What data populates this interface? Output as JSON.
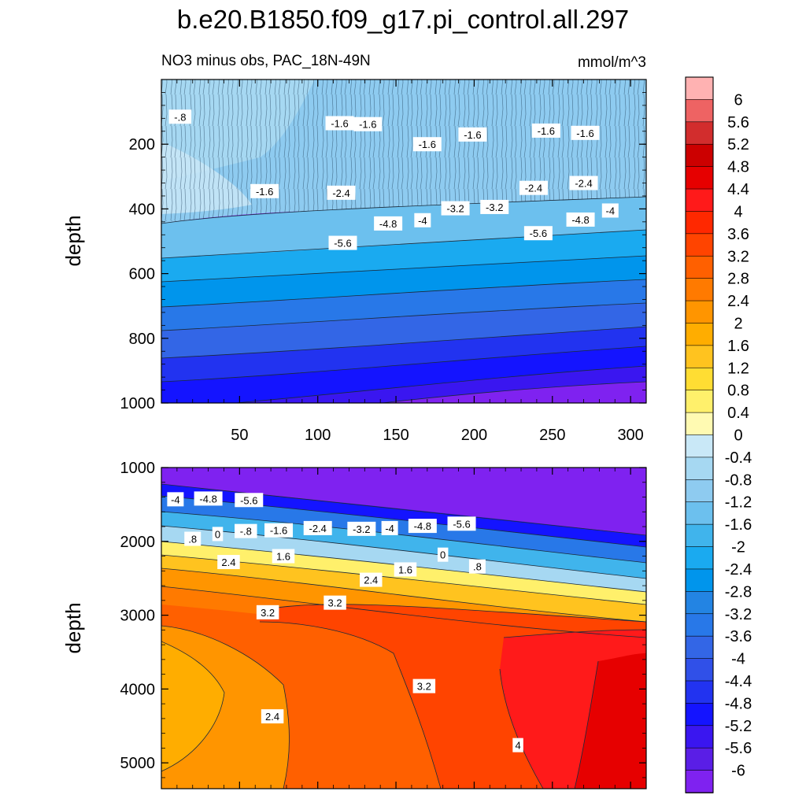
{
  "title": "b.e20.B1850.f09_g17.pi_control.all.297",
  "subtitle": "NO3 minus obs, PAC_18N-49N",
  "units": "mmol/m^3",
  "chart_data": [
    {
      "type": "contour",
      "panel": "upper",
      "ylabel": "depth",
      "xlabel": "",
      "xlim": [
        0,
        310
      ],
      "ylim": [
        1000,
        0
      ],
      "x_ticks": [
        50,
        100,
        150,
        200,
        250,
        300
      ],
      "y_ticks": [
        200,
        400,
        600,
        800,
        1000
      ],
      "contour_labels": [
        {
          "text": "-.8",
          "x": 12,
          "y": 115
        },
        {
          "text": "-1.6",
          "x": 114,
          "y": 135
        },
        {
          "text": "-1.6",
          "x": 132,
          "y": 138
        },
        {
          "text": "-1.6",
          "x": 170,
          "y": 200
        },
        {
          "text": "-1.6",
          "x": 199,
          "y": 170
        },
        {
          "text": "-1.6",
          "x": 246,
          "y": 158
        },
        {
          "text": "-1.6",
          "x": 271,
          "y": 165
        },
        {
          "text": "-1.6",
          "x": 66,
          "y": 345
        },
        {
          "text": "-2.4",
          "x": 115,
          "y": 350
        },
        {
          "text": "-2.4",
          "x": 238,
          "y": 335
        },
        {
          "text": "-2.4",
          "x": 270,
          "y": 320
        },
        {
          "text": "-3.2",
          "x": 188,
          "y": 398
        },
        {
          "text": "-3.2",
          "x": 213,
          "y": 394
        },
        {
          "text": "-4",
          "x": 167,
          "y": 435
        },
        {
          "text": "-4",
          "x": 287,
          "y": 405
        },
        {
          "text": "-4.8",
          "x": 145,
          "y": 445
        },
        {
          "text": "-4.8",
          "x": 268,
          "y": 433
        },
        {
          "text": "-5.6",
          "x": 116,
          "y": 505
        },
        {
          "text": "-5.6",
          "x": 241,
          "y": 475
        }
      ]
    },
    {
      "type": "contour",
      "panel": "lower",
      "ylabel": "depth",
      "xlabel": "",
      "xlim": [
        0,
        310
      ],
      "ylim": [
        5350,
        1000
      ],
      "y_ticks": [
        1000,
        2000,
        3000,
        4000,
        5000
      ],
      "contour_labels": [
        {
          "text": "-4",
          "x": 9,
          "y": 1430
        },
        {
          "text": "-4.8",
          "x": 30,
          "y": 1420
        },
        {
          "text": "-5.6",
          "x": 56,
          "y": 1440
        },
        {
          "text": "0",
          "x": 36,
          "y": 1900
        },
        {
          "text": "-.8",
          "x": 54,
          "y": 1860
        },
        {
          "text": "-1.6",
          "x": 75,
          "y": 1850
        },
        {
          "text": "-2.4",
          "x": 100,
          "y": 1820
        },
        {
          "text": "-3.2",
          "x": 128,
          "y": 1830
        },
        {
          "text": "-4",
          "x": 146,
          "y": 1820
        },
        {
          "text": "-4.8",
          "x": 167,
          "y": 1790
        },
        {
          "text": "-5.6",
          "x": 192,
          "y": 1760
        },
        {
          "text": ".8",
          "x": 20,
          "y": 1965
        },
        {
          "text": "2.4",
          "x": 43,
          "y": 2280
        },
        {
          "text": "1.6",
          "x": 78,
          "y": 2200
        },
        {
          "text": "0",
          "x": 180,
          "y": 2180
        },
        {
          "text": ".8",
          "x": 202,
          "y": 2340
        },
        {
          "text": "1.6",
          "x": 156,
          "y": 2380
        },
        {
          "text": "2.4",
          "x": 134,
          "y": 2520
        },
        {
          "text": "3.2",
          "x": 68,
          "y": 2960
        },
        {
          "text": "3.2",
          "x": 111,
          "y": 2830
        },
        {
          "text": "3.2",
          "x": 168,
          "y": 3960
        },
        {
          "text": "2.4",
          "x": 71,
          "y": 4370
        },
        {
          "text": "4",
          "x": 228,
          "y": 4760
        }
      ]
    }
  ],
  "colorbar": {
    "levels": [
      "6",
      "5.6",
      "5.2",
      "4.8",
      "4.4",
      "4",
      "3.6",
      "3.2",
      "2.8",
      "2.4",
      "2",
      "1.6",
      "1.2",
      "0.8",
      "0.4",
      "0",
      "-0.4",
      "-0.8",
      "-1.2",
      "-1.6",
      "-2",
      "-2.4",
      "-2.8",
      "-3.2",
      "-3.6",
      "-4",
      "-4.4",
      "-4.8",
      "-5.2",
      "-5.6",
      "-6"
    ],
    "colors": [
      "#FFB2B2",
      "#EE6363",
      "#D22D2D",
      "#CC0000",
      "#E60000",
      "#FF1A1A",
      "#FF2800",
      "#FF4400",
      "#FF6000",
      "#FF7A00",
      "#FF9500",
      "#FFAD00",
      "#FFC31F",
      "#FFDD33",
      "#FFF06B",
      "#FFFAB2",
      "#C9E8F7",
      "#A6D8F2",
      "#8ECBF0",
      "#6CC0EE",
      "#40B4EC",
      "#1AAAF0",
      "#0095EC",
      "#2384E3",
      "#2878E8",
      "#3366E6",
      "#3050E8",
      "#2233F0",
      "#1414FF",
      "#3A16F0",
      "#5A1EE6",
      "#7F22F0"
    ]
  }
}
